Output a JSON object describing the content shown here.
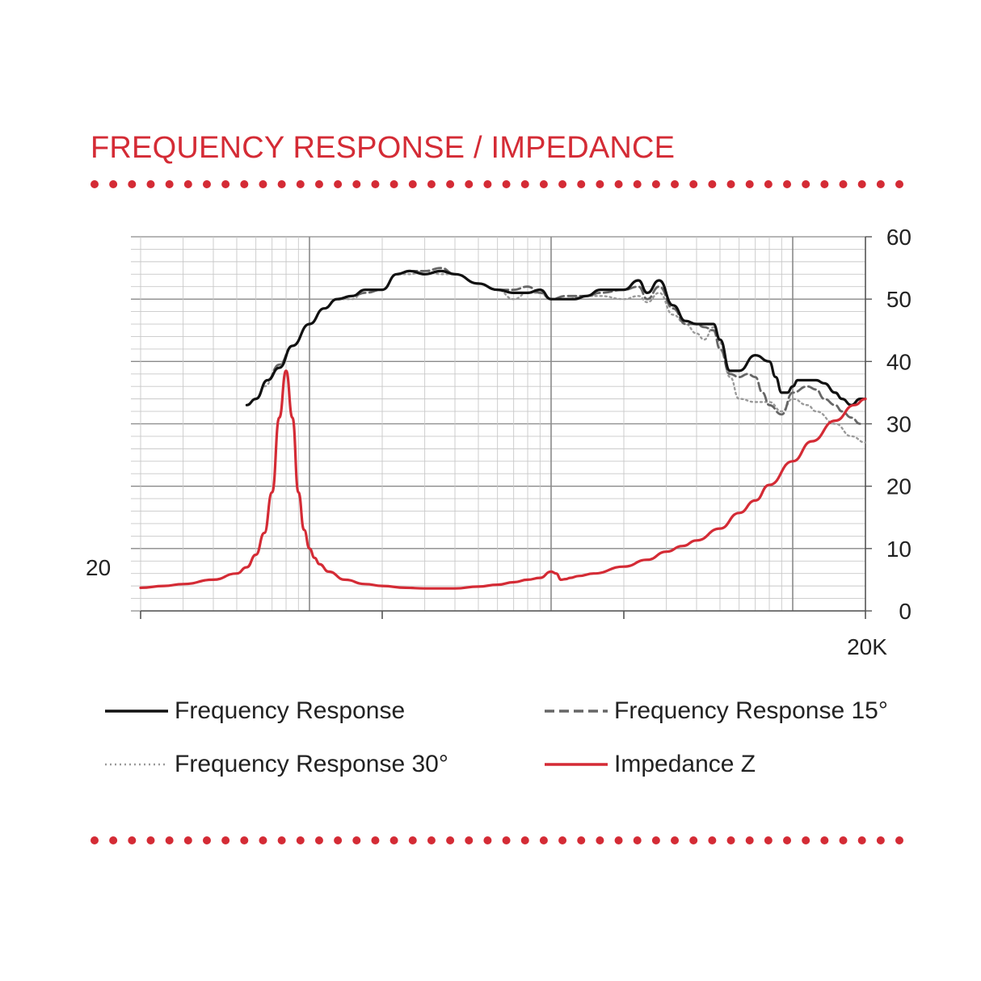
{
  "title": "FREQUENCY RESPONSE / IMPEDANCE",
  "colors": {
    "accent": "#d42b35",
    "fr": "#111111",
    "fr15": "#666666",
    "fr30": "#9a9a9a",
    "impedance": "#d42b35",
    "grid": "#c8c8c8",
    "grid_major": "#8a8a8a"
  },
  "chart_data": {
    "type": "line",
    "x_scale": "log",
    "xlim": [
      20,
      20000
    ],
    "ylim": [
      0,
      60
    ],
    "grid": true,
    "x_tick_labels": [
      {
        "value": 20,
        "label": "20"
      },
      {
        "value": 20000,
        "label": "20K"
      }
    ],
    "y_tick_labels": [
      {
        "value": 0,
        "label": "0"
      },
      {
        "value": 10,
        "label": "10"
      },
      {
        "value": 20,
        "label": "20"
      },
      {
        "value": 30,
        "label": "30"
      },
      {
        "value": 40,
        "label": "40"
      },
      {
        "value": 50,
        "label": "50"
      },
      {
        "value": 60,
        "label": "60"
      }
    ],
    "legend_position": "bottom",
    "series": [
      {
        "name": "Frequency Response",
        "style": "solid",
        "x": [
          55,
          60,
          67,
          75,
          85,
          100,
          115,
          130,
          150,
          170,
          200,
          230,
          260,
          300,
          350,
          400,
          500,
          600,
          700,
          800,
          900,
          1000,
          1150,
          1250,
          1400,
          1600,
          1800,
          2000,
          2300,
          2500,
          2800,
          3200,
          3600,
          4000,
          4300,
          4700,
          5000,
          5500,
          6000,
          7000,
          8000,
          8500,
          9000,
          9500,
          10000,
          10500,
          11500,
          12500,
          13500,
          15000,
          16000,
          17500,
          19000,
          20000
        ],
        "y": [
          33,
          34,
          37,
          39,
          42.5,
          46,
          48.5,
          50,
          50.5,
          51.5,
          51.5,
          54,
          54.5,
          54,
          54.5,
          54,
          52.5,
          51.5,
          51,
          51,
          51.5,
          50,
          50,
          50,
          50.5,
          51.5,
          51.5,
          51.5,
          53,
          51,
          53,
          49,
          46.5,
          46,
          46,
          46,
          43.5,
          38.5,
          38.5,
          41,
          40,
          37.5,
          35,
          35,
          36,
          37,
          37,
          37,
          36.5,
          35,
          34,
          33,
          34,
          34
        ]
      },
      {
        "name": "Frequency Response 15°",
        "style": "dashed",
        "x": [
          60,
          67,
          75,
          85,
          100,
          115,
          130,
          150,
          170,
          200,
          230,
          260,
          300,
          350,
          400,
          500,
          600,
          700,
          800,
          900,
          1000,
          1150,
          1400,
          1600,
          2000,
          2300,
          2500,
          2800,
          3200,
          3600,
          4000,
          4300,
          4700,
          5000,
          5500,
          6000,
          6500,
          7000,
          7500,
          8000,
          9000,
          10000,
          11500,
          12500,
          13500,
          15000,
          16000,
          17500,
          19000
        ],
        "y": [
          34,
          37,
          39.5,
          42.5,
          46,
          48.5,
          50,
          50.5,
          51,
          51.5,
          54,
          54.5,
          54.5,
          55,
          54,
          52.5,
          51.5,
          51.5,
          52,
          51,
          50,
          50.5,
          50.5,
          51,
          51.5,
          52,
          50,
          52,
          48.5,
          46,
          46,
          45.5,
          45,
          42,
          38,
          37.5,
          38,
          37.5,
          35,
          33,
          31.5,
          35,
          36,
          35.5,
          34,
          33,
          32,
          31,
          30
        ]
      },
      {
        "name": "Frequency Response 30°",
        "style": "dotted",
        "x": [
          65,
          75,
          85,
          100,
          115,
          130,
          150,
          170,
          200,
          230,
          260,
          300,
          350,
          400,
          500,
          600,
          700,
          800,
          900,
          1000,
          1150,
          1400,
          1600,
          2000,
          2300,
          2500,
          2800,
          3200,
          3600,
          4000,
          4300,
          4700,
          5000,
          5500,
          6000,
          7000,
          8000,
          9000,
          10000,
          11500,
          12500,
          15000,
          17500,
          20000
        ],
        "y": [
          36,
          39.5,
          42.5,
          46,
          48.5,
          50,
          50,
          51.5,
          51.5,
          54,
          54,
          54.5,
          54,
          54,
          52.5,
          51.5,
          50,
          51,
          51,
          50,
          50,
          50.5,
          50.5,
          50,
          50.5,
          49.5,
          51,
          47.5,
          46,
          44.5,
          43.5,
          45.5,
          43,
          37.5,
          34,
          33.5,
          33.5,
          32,
          34,
          33,
          32,
          30,
          28,
          27
        ]
      },
      {
        "name": "Impedance Z",
        "style": "solid",
        "x": [
          20,
          25,
          30,
          40,
          50,
          55,
          60,
          65,
          70,
          75,
          80,
          85,
          90,
          95,
          100,
          105,
          110,
          120,
          140,
          170,
          200,
          250,
          300,
          400,
          500,
          600,
          700,
          800,
          900,
          1000,
          1050,
          1100,
          1150,
          1200,
          1300,
          1500,
          2000,
          2500,
          3000,
          3500,
          4000,
          5000,
          6000,
          7000,
          8000,
          10000,
          12000,
          15000,
          18000,
          20000
        ],
        "y": [
          3.7,
          4.0,
          4.3,
          5.0,
          6.0,
          7.0,
          9.0,
          12.5,
          19,
          31,
          38.5,
          31,
          19,
          13,
          10,
          8.5,
          7.5,
          6.3,
          5.0,
          4.3,
          4.0,
          3.7,
          3.6,
          3.6,
          3.9,
          4.2,
          4.6,
          5.0,
          5.3,
          6.3,
          6.0,
          5.0,
          5.1,
          5.3,
          5.6,
          6.0,
          7.1,
          8.2,
          9.5,
          10.4,
          11.3,
          13.2,
          15.7,
          17.7,
          20.2,
          24.0,
          27.2,
          30.5,
          33.0,
          34.0
        ]
      }
    ]
  },
  "legend": {
    "fr": {
      "label": "Frequency Response"
    },
    "fr15": {
      "label": "Frequency Response 15°"
    },
    "fr30": {
      "label": "Frequency Response 30°"
    },
    "imp": {
      "label": "Impedance Z"
    }
  }
}
